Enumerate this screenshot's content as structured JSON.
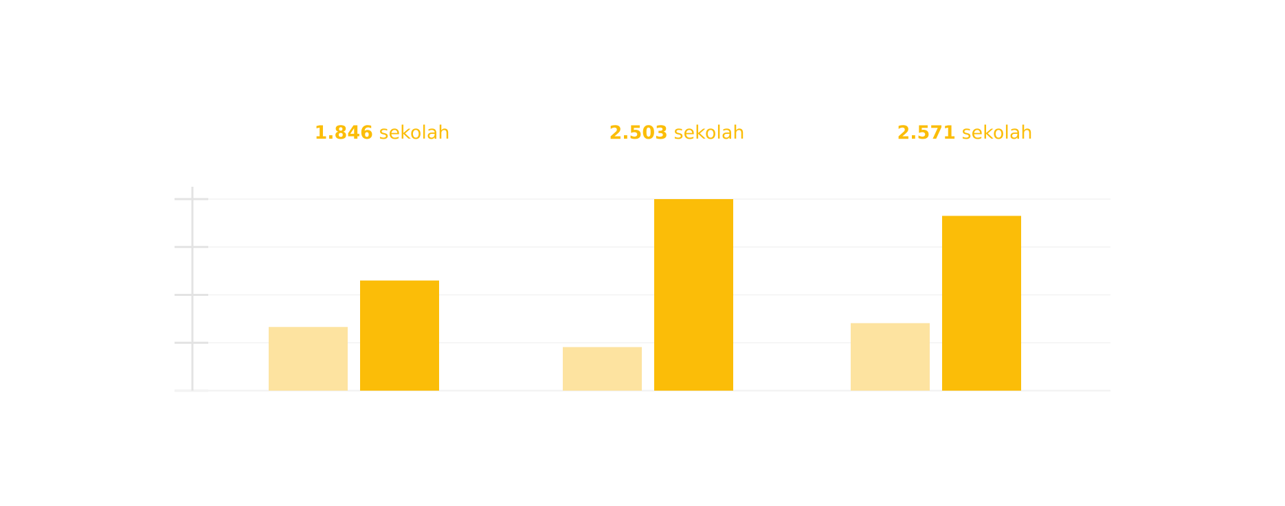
{
  "chart_data": {
    "type": "bar",
    "categories": [
      "",
      "",
      ""
    ],
    "group_labels": [
      {
        "value": "1.846",
        "unit": "sekolah"
      },
      {
        "value": "2.503",
        "unit": "sekolah"
      },
      {
        "value": "2.571",
        "unit": "sekolah"
      }
    ],
    "series": [
      {
        "values": [
          1.33,
          0.91,
          1.41
        ],
        "color": "#FDE3A0"
      },
      {
        "values": [
          2.3,
          4.0,
          3.65
        ],
        "color": "#FBBD08"
      }
    ],
    "ylim": [
      0,
      4
    ],
    "yticks": [
      0,
      1,
      2,
      3,
      4
    ],
    "grid": true,
    "axis_color": "#E3E3E3",
    "grid_color": "#F3F3F3"
  }
}
